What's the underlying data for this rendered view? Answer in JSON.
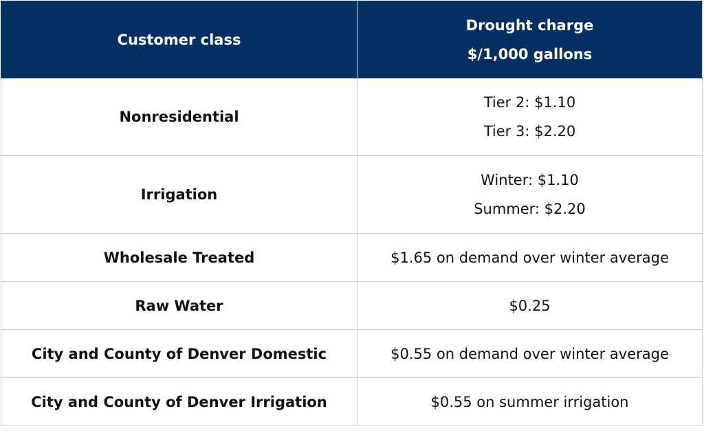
{
  "table": {
    "header": [
      [
        "Customer class"
      ],
      [
        "Drought charge",
        "$/1,000 gallons"
      ]
    ],
    "rows": [
      [
        [
          "Nonresidential"
        ],
        [
          "Tier 2: $1.10",
          "Tier 3: $2.20"
        ]
      ],
      [
        [
          "Irrigation"
        ],
        [
          "Winter: $1.10",
          "Summer: $2.20"
        ]
      ],
      [
        [
          "Wholesale Treated"
        ],
        [
          "$1.65 on demand over winter average"
        ]
      ],
      [
        [
          "Raw Water"
        ],
        [
          "$0.25"
        ]
      ],
      [
        [
          "City and County of Denver Domestic"
        ],
        [
          "$0.55 on demand over winter average"
        ]
      ],
      [
        [
          "City and County of Denver Irrigation"
        ],
        [
          "$0.55 on summer irrigation"
        ]
      ]
    ]
  }
}
